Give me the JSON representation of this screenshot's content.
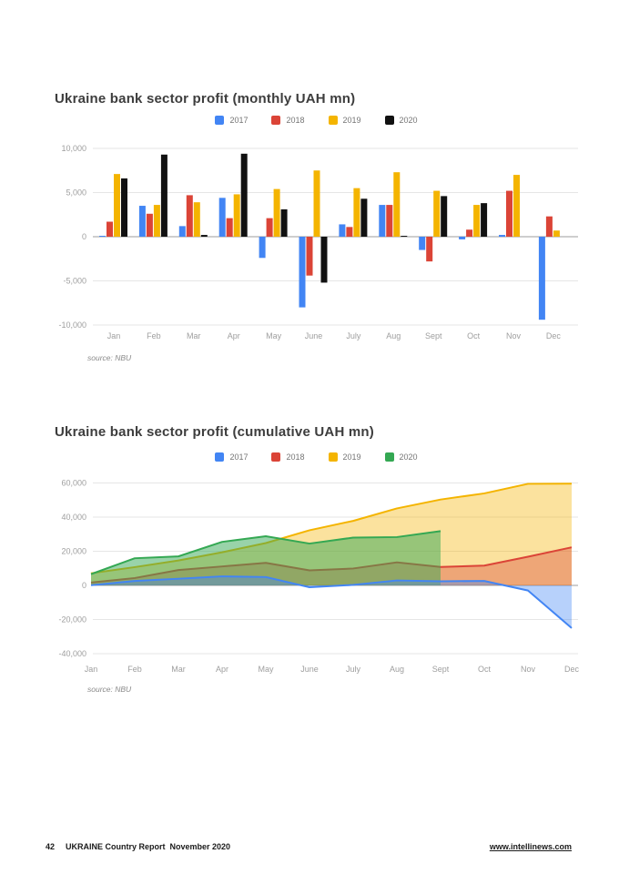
{
  "page": {
    "footer": {
      "page_number": "42",
      "report_title": "UKRAINE Country Report",
      "date": "November 2020",
      "website": "www.intellinews.com"
    }
  },
  "chart_data": [
    {
      "type": "bar",
      "title": "Ukraine bank sector profit (monthly UAH mn)",
      "source": "source: NBU",
      "categories": [
        "Jan",
        "Feb",
        "Mar",
        "Apr",
        "May",
        "June",
        "July",
        "Aug",
        "Sept",
        "Oct",
        "Nov",
        "Dec"
      ],
      "series": [
        {
          "name": "2017",
          "color": "#4285F4",
          "values": [
            100,
            3500,
            1200,
            4400,
            -2400,
            -8000,
            1400,
            3600,
            -1500,
            -300,
            200,
            -9400
          ]
        },
        {
          "name": "2018",
          "color": "#DB4437",
          "values": [
            1700,
            2600,
            4700,
            2100,
            2100,
            -4400,
            1100,
            3600,
            -2800,
            800,
            5200,
            2300
          ]
        },
        {
          "name": "2019",
          "color": "#F4B400",
          "values": [
            7100,
            3600,
            3900,
            4800,
            5400,
            7500,
            5500,
            7300,
            5200,
            3600,
            7000,
            700
          ]
        },
        {
          "name": "2020",
          "color": "#111111",
          "values": [
            6600,
            9300,
            200,
            9400,
            3100,
            -5200,
            4300,
            100,
            4600,
            3800,
            null,
            null
          ]
        }
      ],
      "ylim": [
        -10000,
        10000
      ],
      "yticks": [
        10000,
        5000,
        0,
        -5000,
        -10000
      ],
      "ytick_labels": [
        "10,000",
        "5,000",
        "0",
        "-5,000",
        "-10,000"
      ],
      "grid": true,
      "legend_position": "top"
    },
    {
      "type": "area",
      "title": "Ukraine bank sector profit (cumulative UAH mn)",
      "source": "source: NBU",
      "categories": [
        "Jan",
        "Feb",
        "Mar",
        "Apr",
        "May",
        "June",
        "July",
        "Aug",
        "Sept",
        "Oct",
        "Nov",
        "Dec"
      ],
      "series": [
        {
          "name": "2017",
          "color": "#4285F4",
          "values": [
            100,
            2600,
            3900,
            5300,
            4900,
            -1100,
            300,
            2900,
            2400,
            2600,
            -3000,
            -25000
          ]
        },
        {
          "name": "2018",
          "color": "#DB4437",
          "values": [
            1700,
            4300,
            9000,
            11100,
            13200,
            8800,
            9900,
            13500,
            10800,
            11600,
            16800,
            22300
          ]
        },
        {
          "name": "2019",
          "color": "#F4B400",
          "values": [
            7100,
            10700,
            14600,
            19400,
            24800,
            32300,
            37800,
            45100,
            50300,
            53900,
            59500,
            59600
          ]
        },
        {
          "name": "2020",
          "color": "#34A853",
          "values": [
            6600,
            15900,
            17000,
            25500,
            28800,
            24500,
            28000,
            28300,
            31800
          ]
        }
      ],
      "ylim": [
        -40000,
        60000
      ],
      "yticks": [
        60000,
        40000,
        20000,
        0,
        -20000,
        -40000
      ],
      "ytick_labels": [
        "60,000",
        "40,000",
        "20,000",
        "0",
        "-20,000",
        "-40,000"
      ],
      "grid": true,
      "legend_position": "top"
    }
  ]
}
